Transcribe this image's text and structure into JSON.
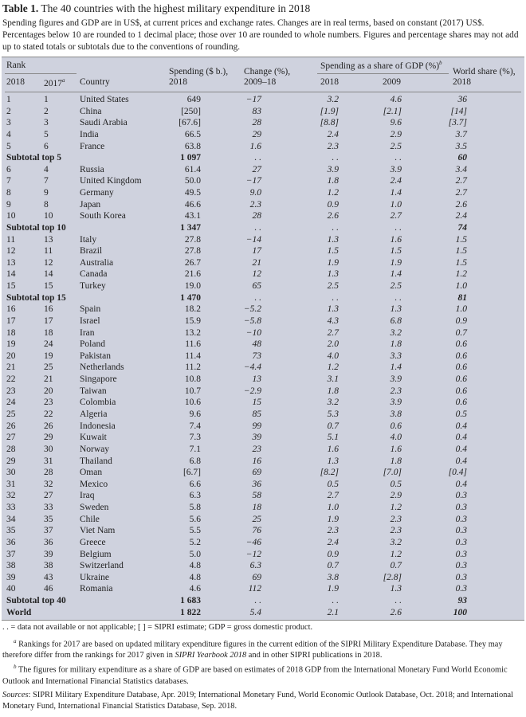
{
  "title": {
    "label": "Table 1.",
    "text": "The 40 countries with the highest military expenditure in 2018"
  },
  "intro": "Spending figures and GDP are in US$, at current prices and exchange rates. Changes are in real terms, based on constant (2017) US$. Percentages below 10 are rounded to 1 decimal place; those over 10 are rounded to whole numbers. Figures and percentage shares may not add up to stated totals or subtotals due to the conventions of rounding.",
  "header": {
    "rank": "Rank",
    "rank_2018": "2018",
    "rank_2017": "2017",
    "rank_2017_note": "a",
    "country": "Country",
    "spending_1": "Spending ($ b.),",
    "spending_2": "2018",
    "change_1": "Change (%),",
    "change_2": "2009–18",
    "gdp_share": "Spending as a share of GDP (%)",
    "gdp_share_note": "b",
    "gdp_2018": "2018",
    "gdp_2009": "2009",
    "world_1": "World share (%),",
    "world_2": "2018"
  },
  "rows": [
    {
      "r18": "1",
      "r17": "1",
      "country": "United States",
      "sp": "649",
      "ch": "−17",
      "g18": "3.2",
      "g09": "4.6",
      "ws": "36"
    },
    {
      "r18": "2",
      "r17": "2",
      "country": "China",
      "sp": "[250]",
      "ch": "83",
      "g18": "[1.9]",
      "g09": "[2.1]",
      "ws": "[14]"
    },
    {
      "r18": "3",
      "r17": "3",
      "country": "Saudi Arabia",
      "sp": "[67.6]",
      "ch": "28",
      "g18": "[8.8]",
      "g09": "9.6",
      "ws": "[3.7]"
    },
    {
      "r18": "4",
      "r17": "5",
      "country": "India",
      "sp": "66.5",
      "ch": "29",
      "g18": "2.4",
      "g09": "2.9",
      "ws": "3.7"
    },
    {
      "r18": "5",
      "r17": "6",
      "country": "France",
      "sp": "63.8",
      "ch": "1.6",
      "g18": "2.3",
      "g09": "2.5",
      "ws": "3.5"
    },
    {
      "sub": true,
      "label": "Subtotal top 5",
      "sp": "1 097",
      "ch": ". .",
      "g18": ". .",
      "g09": ". .",
      "ws": "60"
    },
    {
      "r18": "6",
      "r17": "4",
      "country": "Russia",
      "sp": "61.4",
      "ch": "27",
      "g18": "3.9",
      "g09": "3.9",
      "ws": "3.4"
    },
    {
      "r18": "7",
      "r17": "7",
      "country": "United Kingdom",
      "sp": "50.0",
      "ch": "−17",
      "g18": "1.8",
      "g09": "2.4",
      "ws": "2.7"
    },
    {
      "r18": "8",
      "r17": "9",
      "country": "Germany",
      "sp": "49.5",
      "ch": "9.0",
      "g18": "1.2",
      "g09": "1.4",
      "ws": "2.7"
    },
    {
      "r18": "9",
      "r17": "8",
      "country": "Japan",
      "sp": "46.6",
      "ch": "2.3",
      "g18": "0.9",
      "g09": "1.0",
      "ws": "2.6"
    },
    {
      "r18": "10",
      "r17": "10",
      "country": "South Korea",
      "sp": "43.1",
      "ch": "28",
      "g18": "2.6",
      "g09": "2.7",
      "ws": "2.4"
    },
    {
      "sub": true,
      "label": "Subtotal top 10",
      "sp": "1 347",
      "ch": ". .",
      "g18": ". .",
      "g09": ". .",
      "ws": "74"
    },
    {
      "r18": "11",
      "r17": "13",
      "country": "Italy",
      "sp": "27.8",
      "ch": "−14",
      "g18": "1.3",
      "g09": "1.6",
      "ws": "1.5"
    },
    {
      "r18": "12",
      "r17": "11",
      "country": "Brazil",
      "sp": "27.8",
      "ch": "17",
      "g18": "1.5",
      "g09": "1.5",
      "ws": "1.5"
    },
    {
      "r18": "13",
      "r17": "12",
      "country": "Australia",
      "sp": "26.7",
      "ch": "21",
      "g18": "1.9",
      "g09": "1.9",
      "ws": "1.5"
    },
    {
      "r18": "14",
      "r17": "14",
      "country": "Canada",
      "sp": "21.6",
      "ch": "12",
      "g18": "1.3",
      "g09": "1.4",
      "ws": "1.2"
    },
    {
      "r18": "15",
      "r17": "15",
      "country": "Turkey",
      "sp": "19.0",
      "ch": "65",
      "g18": "2.5",
      "g09": "2.5",
      "ws": "1.0"
    },
    {
      "sub": true,
      "label": "Subtotal top 15",
      "sp": "1 470",
      "ch": ". .",
      "g18": ". .",
      "g09": ". .",
      "ws": "81"
    },
    {
      "r18": "16",
      "r17": "16",
      "country": "Spain",
      "sp": "18.2",
      "ch": "−5.2",
      "g18": "1.3",
      "g09": "1.3",
      "ws": "1.0"
    },
    {
      "r18": "17",
      "r17": "17",
      "country": "Israel",
      "sp": "15.9",
      "ch": "−5.8",
      "g18": "4.3",
      "g09": "6.8",
      "ws": "0.9"
    },
    {
      "r18": "18",
      "r17": "18",
      "country": "Iran",
      "sp": "13.2",
      "ch": "−10",
      "g18": "2.7",
      "g09": "3.2",
      "ws": "0.7"
    },
    {
      "r18": "19",
      "r17": "24",
      "country": "Poland",
      "sp": "11.6",
      "ch": "48",
      "g18": "2.0",
      "g09": "1.8",
      "ws": "0.6"
    },
    {
      "r18": "20",
      "r17": "19",
      "country": "Pakistan",
      "sp": "11.4",
      "ch": "73",
      "g18": "4.0",
      "g09": "3.3",
      "ws": "0.6"
    },
    {
      "r18": "21",
      "r17": "25",
      "country": "Netherlands",
      "sp": "11.2",
      "ch": "−4.4",
      "g18": "1.2",
      "g09": "1.4",
      "ws": "0.6"
    },
    {
      "r18": "22",
      "r17": "21",
      "country": "Singapore",
      "sp": "10.8",
      "ch": "13",
      "g18": "3.1",
      "g09": "3.9",
      "ws": "0.6"
    },
    {
      "r18": "23",
      "r17": "20",
      "country": "Taiwan",
      "sp": "10.7",
      "ch": "−2.9",
      "g18": "1.8",
      "g09": "2.3",
      "ws": "0.6"
    },
    {
      "r18": "24",
      "r17": "23",
      "country": "Colombia",
      "sp": "10.6",
      "ch": "15",
      "g18": "3.2",
      "g09": "3.9",
      "ws": "0.6"
    },
    {
      "r18": "25",
      "r17": "22",
      "country": "Algeria",
      "sp": "9.6",
      "ch": "85",
      "g18": "5.3",
      "g09": "3.8",
      "ws": "0.5"
    },
    {
      "r18": "26",
      "r17": "26",
      "country": "Indonesia",
      "sp": "7.4",
      "ch": "99",
      "g18": "0.7",
      "g09": "0.6",
      "ws": "0.4"
    },
    {
      "r18": "27",
      "r17": "29",
      "country": "Kuwait",
      "sp": "7.3",
      "ch": "39",
      "g18": "5.1",
      "g09": "4.0",
      "ws": "0.4"
    },
    {
      "r18": "28",
      "r17": "30",
      "country": "Norway",
      "sp": "7.1",
      "ch": "23",
      "g18": "1.6",
      "g09": "1.6",
      "ws": "0.4"
    },
    {
      "r18": "29",
      "r17": "31",
      "country": "Thailand",
      "sp": "6.8",
      "ch": "16",
      "g18": "1.3",
      "g09": "1.8",
      "ws": "0.4"
    },
    {
      "r18": "30",
      "r17": "28",
      "country": "Oman",
      "sp": "[6.7]",
      "ch": "69",
      "g18": "[8.2]",
      "g09": "[7.0]",
      "ws": "[0.4]"
    },
    {
      "r18": "31",
      "r17": "32",
      "country": "Mexico",
      "sp": "6.6",
      "ch": "36",
      "g18": "0.5",
      "g09": "0.5",
      "ws": "0.4"
    },
    {
      "r18": "32",
      "r17": "27",
      "country": "Iraq",
      "sp": "6.3",
      "ch": "58",
      "g18": "2.7",
      "g09": "2.9",
      "ws": "0.3"
    },
    {
      "r18": "33",
      "r17": "33",
      "country": "Sweden",
      "sp": "5.8",
      "ch": "18",
      "g18": "1.0",
      "g09": "1.2",
      "ws": "0.3"
    },
    {
      "r18": "34",
      "r17": "35",
      "country": "Chile",
      "sp": "5.6",
      "ch": "25",
      "g18": "1.9",
      "g09": "2.3",
      "ws": "0.3"
    },
    {
      "r18": "35",
      "r17": "37",
      "country": "Viet Nam",
      "sp": "5.5",
      "ch": "76",
      "g18": "2.3",
      "g09": "2.3",
      "ws": "0.3"
    },
    {
      "r18": "36",
      "r17": "36",
      "country": "Greece",
      "sp": "5.2",
      "ch": "−46",
      "g18": "2.4",
      "g09": "3.2",
      "ws": "0.3"
    },
    {
      "r18": "37",
      "r17": "39",
      "country": "Belgium",
      "sp": "5.0",
      "ch": "−12",
      "g18": "0.9",
      "g09": "1.2",
      "ws": "0.3"
    },
    {
      "r18": "38",
      "r17": "38",
      "country": "Switzerland",
      "sp": "4.8",
      "ch": "6.3",
      "g18": "0.7",
      "g09": "0.7",
      "ws": "0.3"
    },
    {
      "r18": "39",
      "r17": "43",
      "country": "Ukraine",
      "sp": "4.8",
      "ch": "69",
      "g18": "3.8",
      "g09": "[2.8]",
      "ws": "0.3"
    },
    {
      "r18": "40",
      "r17": "46",
      "country": "Romania",
      "sp": "4.6",
      "ch": "112",
      "g18": "1.9",
      "g09": "1.3",
      "ws": "0.3"
    },
    {
      "sub": true,
      "label": "Subtotal top 40",
      "sp": "1 683",
      "ch": ". .",
      "g18": ". .",
      "g09": ". .",
      "ws": "93"
    },
    {
      "sub": true,
      "label": "World",
      "sp": "1 822",
      "ch": "5.4",
      "g18": "2.1",
      "g09": "2.6",
      "ws": "100"
    }
  ],
  "notes": {
    "legend": ". . = data not available or not applicable; [ ] = SIPRI estimate; GDP = gross domestic product.",
    "a_mark": "a",
    "a_text_1": "Rankings for 2017 are based on updated military expenditure figures in the current edition of the SIPRI Military Expenditure Database. They may therefore differ from the rankings for 2017 given in ",
    "a_italic": "SIPRI Yearbook 2018",
    "a_text_2": " and in other SIPRI publications in 2018.",
    "b_mark": "b",
    "b_text": "The figures for military expenditure as a share of GDP are based on estimates of 2018 GDP from the International Monetary Fund World Economic Outlook and International Financial Statistics databases.",
    "sources_label": "Sources",
    "sources_text": ": SIPRI Military Expenditure Database, Apr. 2019; International Monetary Fund, World Economic Outlook Database, Oct. 2018; and International Monetary Fund, International Financial Statistics Database, Sep. 2018."
  }
}
